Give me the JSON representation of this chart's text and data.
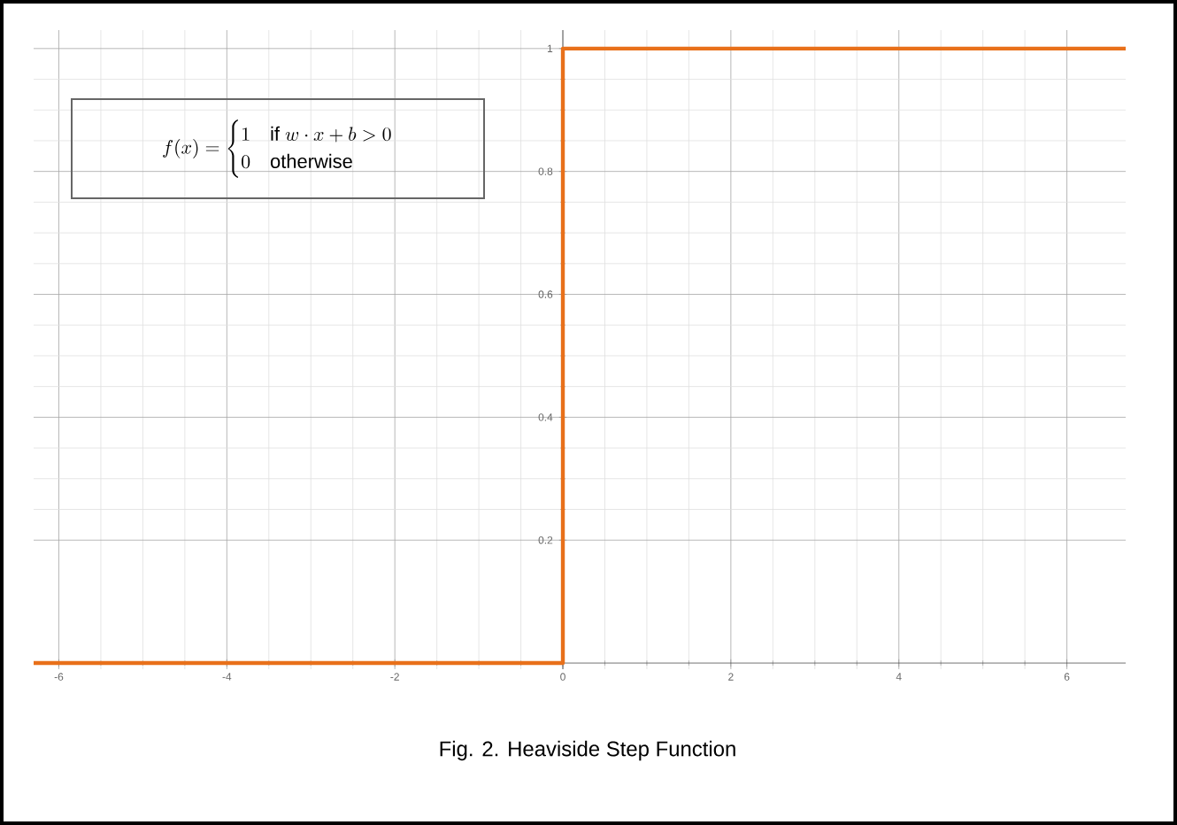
{
  "chart_data": {
    "type": "step",
    "x": [
      -6.3,
      0,
      6.7
    ],
    "series": [
      {
        "color": "#e8701a",
        "values": [
          0,
          1,
          1
        ]
      }
    ],
    "xlim": [
      -6.3,
      6.7
    ],
    "ylim": [
      -0.01,
      1.03
    ],
    "xticks": [
      -6,
      -4,
      -2,
      0,
      2,
      4,
      6
    ],
    "yticks": [
      0.2,
      0.4,
      0.6,
      0.8,
      1
    ],
    "grid": true,
    "annotations": [
      "f(x) = \\begin{cases} 1 & \\text{if } w \\cdot x + b > 0 \\\\ 0 & \\text{otherwise} \\end{cases}",
      "Fig. 2. Heaviside Step Function"
    ]
  }
}
